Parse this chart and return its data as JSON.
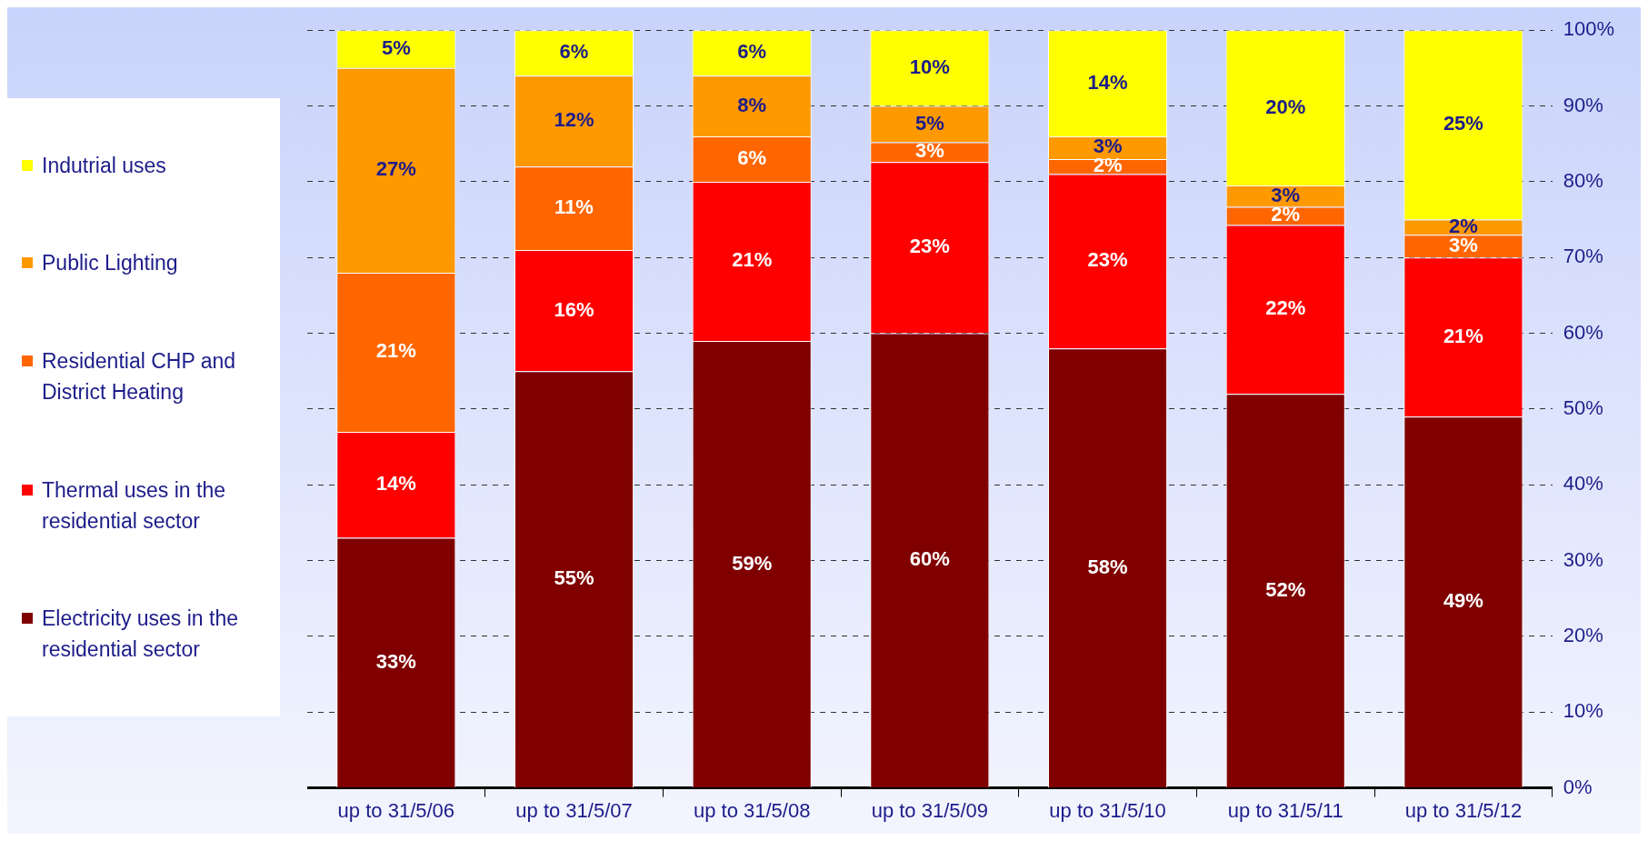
{
  "chart_data": {
    "type": "bar",
    "stacked": true,
    "categories": [
      "up to 31/5/06",
      "up to 31/5/07",
      "up to 31/5/08",
      "up to 31/5/09",
      "up to 31/5/10",
      "up to 31/5/11",
      "up to 31/5/12"
    ],
    "series": [
      {
        "name": "Electricity uses in the residential sector",
        "color": "#800000",
        "values": [
          33,
          55,
          59,
          60,
          58,
          52,
          49
        ],
        "value_labels": [
          "33%",
          "55%",
          "59%",
          "60%",
          "58%",
          "52%",
          "49%"
        ]
      },
      {
        "name": "Thermal uses in the residential sector",
        "color": "#ff0000",
        "values": [
          14,
          16,
          21,
          22.6,
          23,
          22.3,
          21
        ],
        "value_labels": [
          "14%",
          "16%",
          "21%",
          "23%",
          "23%",
          "22%",
          "21%"
        ]
      },
      {
        "name": "Residential CHP and District Heating",
        "color": "#ff6600",
        "values": [
          21,
          11,
          6,
          2.6,
          2,
          2.4,
          3
        ],
        "value_labels": [
          "21%",
          "11%",
          "6%",
          "3%",
          "2%",
          "2%",
          "3%"
        ]
      },
      {
        "name": "Public Lighting",
        "color": "#ff9900",
        "values": [
          27,
          12,
          8,
          4.8,
          3,
          2.8,
          2
        ],
        "value_labels": [
          "27%",
          "12%",
          "8%",
          "5%",
          "3%",
          "3%",
          "2%"
        ]
      },
      {
        "name": "Indutrial uses",
        "color": "#ffff00",
        "values": [
          5,
          6,
          6,
          10,
          14,
          20.5,
          25
        ],
        "value_labels": [
          "5%",
          "6%",
          "6%",
          "10%",
          "14%",
          "20%",
          "25%"
        ]
      }
    ],
    "ylim": [
      0,
      100
    ],
    "yticks": [
      {
        "value": 0,
        "label": "0%"
      },
      {
        "value": 10,
        "label": "10%"
      },
      {
        "value": 20,
        "label": "20%"
      },
      {
        "value": 30,
        "label": "30%"
      },
      {
        "value": 40,
        "label": "40%"
      },
      {
        "value": 50,
        "label": "50%"
      },
      {
        "value": 60,
        "label": "60%"
      },
      {
        "value": 70,
        "label": "70%"
      },
      {
        "value": 80,
        "label": "80%"
      },
      {
        "value": 90,
        "label": "90%"
      },
      {
        "value": 100,
        "label": "100%"
      }
    ],
    "grid": "y",
    "legend": "left"
  }
}
